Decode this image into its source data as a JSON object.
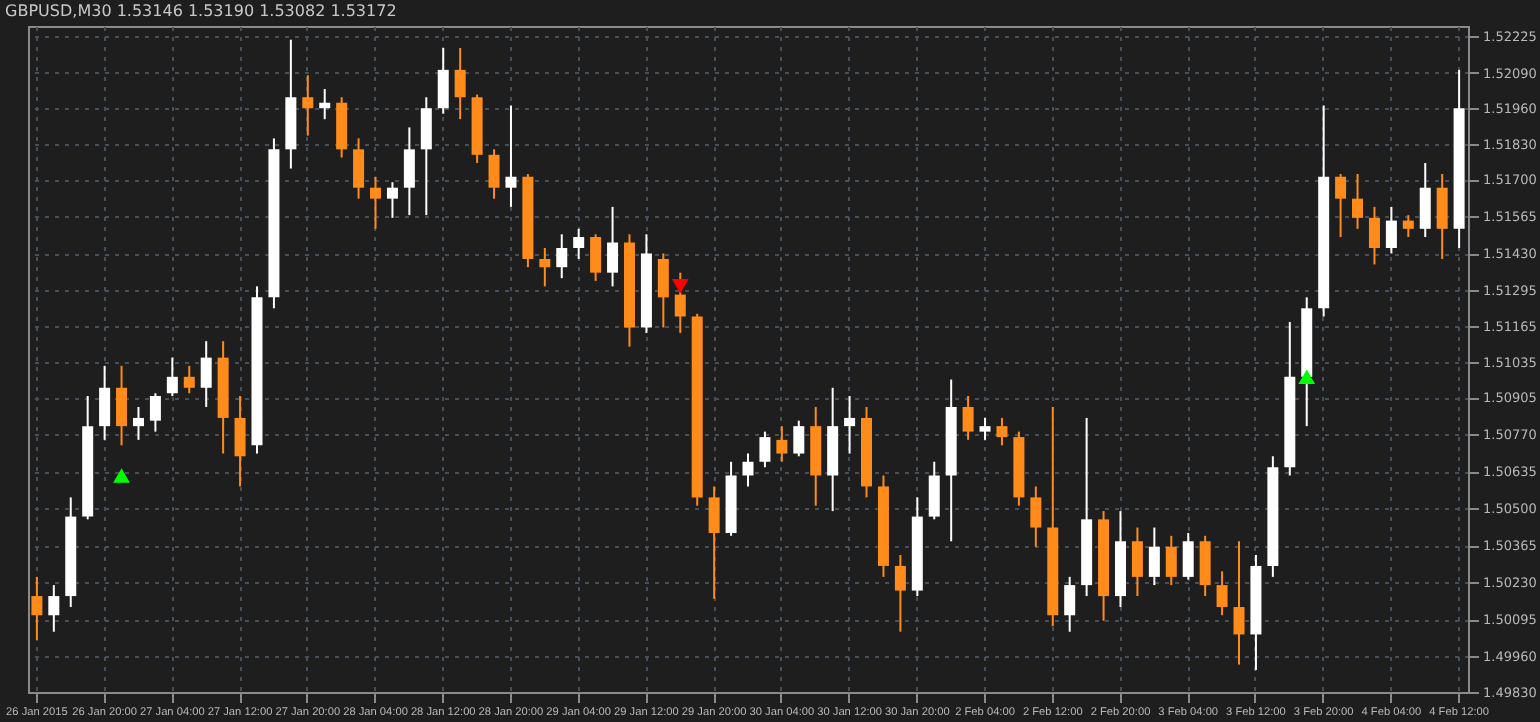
{
  "chart_data": {
    "type": "candlestick",
    "title": "GBPUSD,M30  1.53146 1.53190 1.53082 1.53172",
    "categories": [
      "26 Jan 2015",
      null,
      null,
      null,
      "26 Jan 20:00",
      null,
      null,
      null,
      "27 Jan 04:00",
      null,
      null,
      null,
      "27 Jan 12:00",
      null,
      null,
      null,
      "27 Jan 20:00",
      null,
      null,
      null,
      "28 Jan 04:00",
      null,
      null,
      null,
      "28 Jan 12:00",
      null,
      null,
      null,
      "28 Jan 20:00",
      null,
      null,
      null,
      "29 Jan 04:00",
      null,
      null,
      null,
      "29 Jan 12:00",
      null,
      null,
      null,
      "29 Jan 20:00",
      null,
      null,
      null,
      "30 Jan 04:00",
      null,
      null,
      null,
      "30 Jan 12:00",
      null,
      null,
      null,
      "30 Jan 20:00",
      null,
      null,
      null,
      "2 Feb 04:00",
      null,
      null,
      null,
      "2 Feb 12:00",
      null,
      null,
      null,
      "2 Feb 20:00",
      null,
      null,
      null,
      "3 Feb 04:00",
      null,
      null,
      null,
      "3 Feb 12:00",
      null,
      null,
      null,
      "3 Feb 20:00",
      null,
      null,
      null,
      "4 Feb 04:00",
      null,
      null,
      null,
      "4 Feb 12:00"
    ],
    "ohlc": [
      [
        1.5018,
        1.5025,
        1.5002,
        1.5011
      ],
      [
        1.5011,
        1.5022,
        1.5005,
        1.5018
      ],
      [
        1.5018,
        1.5054,
        1.5014,
        1.5047
      ],
      [
        1.5047,
        1.5091,
        1.5046,
        1.508
      ],
      [
        1.508,
        1.5102,
        1.5075,
        1.5094
      ],
      [
        1.5094,
        1.5102,
        1.5073,
        1.508
      ],
      [
        1.508,
        1.5087,
        1.5075,
        1.5083
      ],
      [
        1.5082,
        1.5092,
        1.5078,
        1.5091
      ],
      [
        1.5092,
        1.5105,
        1.5091,
        1.5098
      ],
      [
        1.5098,
        1.5102,
        1.5092,
        1.5094
      ],
      [
        1.5094,
        1.5111,
        1.5087,
        1.5105
      ],
      [
        1.5105,
        1.5111,
        1.507,
        1.5083
      ],
      [
        1.5083,
        1.5091,
        1.5058,
        1.5069
      ],
      [
        1.5073,
        1.5131,
        1.507,
        1.5127
      ],
      [
        1.5127,
        1.5185,
        1.5123,
        1.5181
      ],
      [
        1.5181,
        1.5221,
        1.5174,
        1.52
      ],
      [
        1.52,
        1.5208,
        1.5186,
        1.5196
      ],
      [
        1.5196,
        1.5203,
        1.5192,
        1.5198
      ],
      [
        1.5198,
        1.52,
        1.5178,
        1.5181
      ],
      [
        1.5181,
        1.5185,
        1.5163,
        1.5167
      ],
      [
        1.5167,
        1.5171,
        1.5152,
        1.5163
      ],
      [
        1.5163,
        1.5169,
        1.5156,
        1.5167
      ],
      [
        1.5167,
        1.5189,
        1.5157,
        1.5181
      ],
      [
        1.5181,
        1.52,
        1.5157,
        1.5196
      ],
      [
        1.5196,
        1.5218,
        1.5194,
        1.521
      ],
      [
        1.521,
        1.5218,
        1.5192,
        1.52
      ],
      [
        1.52,
        1.5201,
        1.5176,
        1.5179
      ],
      [
        1.5179,
        1.5181,
        1.5163,
        1.5167
      ],
      [
        1.5167,
        1.5197,
        1.516,
        1.5171
      ],
      [
        1.5171,
        1.5172,
        1.5138,
        1.5141
      ],
      [
        1.5141,
        1.5145,
        1.5131,
        1.5138
      ],
      [
        1.5138,
        1.515,
        1.5134,
        1.5145
      ],
      [
        1.5145,
        1.5152,
        1.5141,
        1.5149
      ],
      [
        1.5149,
        1.515,
        1.5133,
        1.5136
      ],
      [
        1.5136,
        1.516,
        1.5131,
        1.5147
      ],
      [
        1.5147,
        1.515,
        1.5109,
        1.5116
      ],
      [
        1.5116,
        1.515,
        1.5114,
        1.5143
      ],
      [
        1.5141,
        1.5143,
        1.5116,
        1.5127
      ],
      [
        1.5128,
        1.5136,
        1.5114,
        1.512
      ],
      [
        1.512,
        1.5121,
        1.5051,
        1.5054
      ],
      [
        1.5054,
        1.5058,
        1.5017,
        1.5041
      ],
      [
        1.5041,
        1.5067,
        1.504,
        1.5062
      ],
      [
        1.5062,
        1.507,
        1.5058,
        1.5067
      ],
      [
        1.5067,
        1.5078,
        1.5065,
        1.5076
      ],
      [
        1.5075,
        1.508,
        1.5067,
        1.507
      ],
      [
        1.507,
        1.5082,
        1.5069,
        1.508
      ],
      [
        1.508,
        1.5087,
        1.5051,
        1.5062
      ],
      [
        1.5062,
        1.5094,
        1.5049,
        1.508
      ],
      [
        1.508,
        1.5091,
        1.507,
        1.5083
      ],
      [
        1.5083,
        1.5087,
        1.5054,
        1.5058
      ],
      [
        1.5058,
        1.5062,
        1.5025,
        1.5029
      ],
      [
        1.5029,
        1.5033,
        1.5005,
        1.502
      ],
      [
        1.502,
        1.5054,
        1.5018,
        1.5047
      ],
      [
        1.5047,
        1.5067,
        1.5046,
        1.5062
      ],
      [
        1.5062,
        1.5097,
        1.5038,
        1.5087
      ],
      [
        1.5087,
        1.5091,
        1.5075,
        1.5078
      ],
      [
        1.5078,
        1.5083,
        1.5075,
        1.508
      ],
      [
        1.508,
        1.5083,
        1.5073,
        1.5076
      ],
      [
        1.5076,
        1.5078,
        1.5051,
        1.5054
      ],
      [
        1.5054,
        1.5058,
        1.5036,
        1.5043
      ],
      [
        1.5043,
        1.5087,
        1.5007,
        1.5011
      ],
      [
        1.5011,
        1.5025,
        1.5005,
        1.5022
      ],
      [
        1.5022,
        1.5083,
        1.5018,
        1.5046
      ],
      [
        1.5046,
        1.5049,
        1.5009,
        1.5018
      ],
      [
        1.5018,
        1.5049,
        1.5014,
        1.5038
      ],
      [
        1.5038,
        1.5043,
        1.5018,
        1.5025
      ],
      [
        1.5025,
        1.5043,
        1.5022,
        1.5036
      ],
      [
        1.5036,
        1.504,
        1.5022,
        1.5025
      ],
      [
        1.5025,
        1.5041,
        1.5024,
        1.5038
      ],
      [
        1.5038,
        1.504,
        1.5018,
        1.5022
      ],
      [
        1.5022,
        1.5027,
        1.5011,
        1.5014
      ],
      [
        1.5014,
        1.5038,
        1.4993,
        1.5004
      ],
      [
        1.5004,
        1.5033,
        1.4991,
        1.5029
      ],
      [
        1.5029,
        1.5069,
        1.5025,
        1.5065
      ],
      [
        1.5065,
        1.5118,
        1.5062,
        1.5098
      ],
      [
        1.5098,
        1.5127,
        1.508,
        1.5123
      ],
      [
        1.5123,
        1.5197,
        1.512,
        1.5171
      ],
      [
        1.5171,
        1.5172,
        1.5149,
        1.5163
      ],
      [
        1.5163,
        1.5172,
        1.5152,
        1.5156
      ],
      [
        1.5156,
        1.516,
        1.5139,
        1.5145
      ],
      [
        1.5145,
        1.516,
        1.5143,
        1.5155
      ],
      [
        1.5155,
        1.5157,
        1.5149,
        1.5152
      ],
      [
        1.5152,
        1.5176,
        1.5149,
        1.5167
      ],
      [
        1.5167,
        1.5172,
        1.5141,
        1.5152
      ],
      [
        1.5152,
        1.521,
        1.5145,
        1.5196
      ]
    ],
    "colors": [
      "#ff8c1a",
      "#ffffff",
      "#ffffff",
      "#ffffff",
      "#ffffff",
      "#ff8c1a",
      "#ffffff",
      "#ffffff",
      "#ffffff",
      "#ff8c1a",
      "#ffffff",
      "#ff8c1a",
      "#ff8c1a",
      "#ffffff",
      "#ffffff",
      "#ffffff",
      "#ff8c1a",
      "#ffffff",
      "#ff8c1a",
      "#ff8c1a",
      "#ff8c1a",
      "#ffffff",
      "#ffffff",
      "#ffffff",
      "#ffffff",
      "#ff8c1a",
      "#ff8c1a",
      "#ff8c1a",
      "#ffffff",
      "#ff8c1a",
      "#ff8c1a",
      "#ffffff",
      "#ffffff",
      "#ff8c1a",
      "#ffffff",
      "#ff8c1a",
      "#ffffff",
      "#ff8c1a",
      "#ff8c1a",
      "#ff8c1a",
      "#ff8c1a",
      "#ffffff",
      "#ffffff",
      "#ffffff",
      "#ff8c1a",
      "#ffffff",
      "#ff8c1a",
      "#ffffff",
      "#ffffff",
      "#ff8c1a",
      "#ff8c1a",
      "#ff8c1a",
      "#ffffff",
      "#ffffff",
      "#ffffff",
      "#ff8c1a",
      "#ffffff",
      "#ff8c1a",
      "#ff8c1a",
      "#ff8c1a",
      "#ff8c1a",
      "#ffffff",
      "#ffffff",
      "#ff8c1a",
      "#ffffff",
      "#ff8c1a",
      "#ffffff",
      "#ff8c1a",
      "#ffffff",
      "#ff8c1a",
      "#ff8c1a",
      "#ff8c1a",
      "#ffffff",
      "#ffffff",
      "#ffffff",
      "#ffffff",
      "#ffffff",
      "#ff8c1a",
      "#ff8c1a",
      "#ff8c1a",
      "#ffffff",
      "#ff8c1a",
      "#ffffff",
      "#ff8c1a",
      "#ffffff"
    ],
    "series": [
      {
        "type": "scatter",
        "color": "#00ff00",
        "marker": "triangle",
        "values": [
          null,
          null,
          null,
          null,
          null,
          1.5062,
          null,
          null,
          null,
          null,
          null,
          null,
          null,
          null,
          null,
          null,
          null,
          null,
          null,
          null,
          null,
          null,
          null,
          null,
          null,
          null,
          null,
          null,
          null,
          null,
          null,
          null,
          null,
          null,
          null,
          null,
          null,
          null,
          null,
          null,
          null,
          null,
          null,
          null,
          null,
          null,
          null,
          null,
          null,
          null,
          null,
          null,
          null,
          null,
          null,
          null,
          null,
          null,
          null,
          null,
          null,
          null,
          null,
          null,
          null,
          null,
          null,
          null,
          null,
          null,
          null,
          null,
          null,
          null,
          null,
          1.5098,
          null,
          null,
          null,
          null,
          null,
          null,
          null,
          null,
          null
        ]
      },
      {
        "type": "scatter",
        "color": "#ff0000",
        "marker": "triangle",
        "values": [
          null,
          null,
          null,
          null,
          null,
          null,
          null,
          null,
          null,
          null,
          null,
          null,
          null,
          null,
          null,
          null,
          null,
          null,
          null,
          null,
          null,
          null,
          null,
          null,
          null,
          null,
          null,
          null,
          null,
          null,
          null,
          null,
          null,
          null,
          null,
          null,
          null,
          null,
          1.5131,
          null,
          null,
          null,
          null,
          null,
          null,
          null,
          null,
          null,
          null,
          null,
          null,
          null,
          null,
          null,
          null,
          null,
          null,
          null,
          null,
          null,
          null,
          null,
          null,
          null,
          null,
          null,
          null,
          null,
          null,
          null,
          null,
          null,
          null,
          null,
          null,
          null,
          null,
          null,
          null,
          null,
          null,
          null,
          null,
          null,
          null
        ]
      }
    ],
    "ylim": [
      1.4983,
      1.5226
    ],
    "yticks": [
      {
        "value": 1.52225,
        "label": "1.52225"
      },
      {
        "value": 1.5209,
        "label": "1.52090"
      },
      {
        "value": 1.5196,
        "label": "1.51960"
      },
      {
        "value": 1.5183,
        "label": "1.51830"
      },
      {
        "value": 1.517,
        "label": "1.51700"
      },
      {
        "value": 1.51565,
        "label": "1.51565"
      },
      {
        "value": 1.5143,
        "label": "1.51430"
      },
      {
        "value": 1.51295,
        "label": "1.51295"
      },
      {
        "value": 1.51165,
        "label": "1.51165"
      },
      {
        "value": 1.51035,
        "label": "1.51035"
      },
      {
        "value": 1.50905,
        "label": "1.50905"
      },
      {
        "value": 1.5077,
        "label": "1.50770"
      },
      {
        "value": 1.50635,
        "label": "1.50635"
      },
      {
        "value": 1.505,
        "label": "1.50500"
      },
      {
        "value": 1.50365,
        "label": "1.50365"
      },
      {
        "value": 1.5023,
        "label": "1.50230"
      },
      {
        "value": 1.50095,
        "label": "1.50095"
      },
      {
        "value": 1.4996,
        "label": "1.49960"
      },
      {
        "value": 1.4983,
        "label": "1.49830"
      }
    ],
    "grid": true
  }
}
